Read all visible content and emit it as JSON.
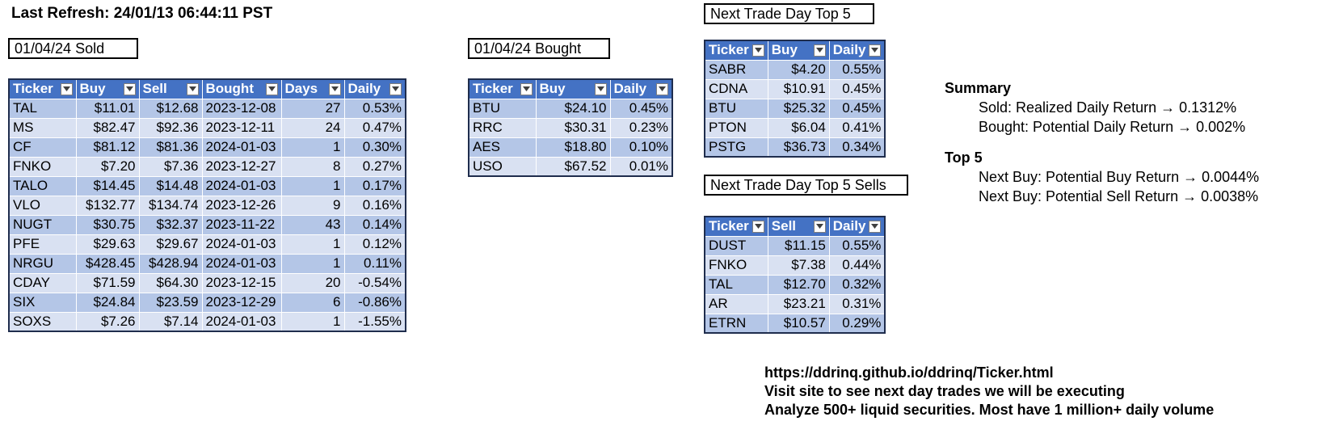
{
  "last_refresh": "Last Refresh: 24/01/13 06:44:11 PST",
  "sold": {
    "label": "01/04/24  Sold",
    "columns": [
      "Ticker",
      "Buy",
      "Sell",
      "Bought",
      "Days",
      "Daily"
    ],
    "rows": [
      [
        "TAL",
        "$11.01",
        "$12.68",
        "2023-12-08",
        "27",
        "0.53%"
      ],
      [
        "MS",
        "$82.47",
        "$92.36",
        "2023-12-11",
        "24",
        "0.47%"
      ],
      [
        "CF",
        "$81.12",
        "$81.36",
        "2024-01-03",
        "1",
        "0.30%"
      ],
      [
        "FNKO",
        "$7.20",
        "$7.36",
        "2023-12-27",
        "8",
        "0.27%"
      ],
      [
        "TALO",
        "$14.45",
        "$14.48",
        "2024-01-03",
        "1",
        "0.17%"
      ],
      [
        "VLO",
        "$132.77",
        "$134.74",
        "2023-12-26",
        "9",
        "0.16%"
      ],
      [
        "NUGT",
        "$30.75",
        "$32.37",
        "2023-11-22",
        "43",
        "0.14%"
      ],
      [
        "PFE",
        "$29.63",
        "$29.67",
        "2024-01-03",
        "1",
        "0.12%"
      ],
      [
        "NRGU",
        "$428.45",
        "$428.94",
        "2024-01-03",
        "1",
        "0.11%"
      ],
      [
        "CDAY",
        "$71.59",
        "$64.30",
        "2023-12-15",
        "20",
        "-0.54%"
      ],
      [
        "SIX",
        "$24.84",
        "$23.59",
        "2023-12-29",
        "6",
        "-0.86%"
      ],
      [
        "SOXS",
        "$7.26",
        "$7.14",
        "2024-01-03",
        "1",
        "-1.55%"
      ]
    ]
  },
  "bought": {
    "label": "01/04/24  Bought",
    "columns": [
      "Ticker",
      "Buy",
      "Daily"
    ],
    "rows": [
      [
        "BTU",
        "$24.10",
        "0.45%"
      ],
      [
        "RRC",
        "$30.31",
        "0.23%"
      ],
      [
        "AES",
        "$18.80",
        "0.10%"
      ],
      [
        "USO",
        "$67.52",
        "0.01%"
      ]
    ]
  },
  "top5": {
    "label": "Next Trade Day Top 5",
    "columns": [
      "Ticker",
      "Buy",
      "Daily"
    ],
    "rows": [
      [
        "SABR",
        "$4.20",
        "0.55%"
      ],
      [
        "CDNA",
        "$10.91",
        "0.45%"
      ],
      [
        "BTU",
        "$25.32",
        "0.45%"
      ],
      [
        "PTON",
        "$6.04",
        "0.41%"
      ],
      [
        "PSTG",
        "$36.73",
        "0.34%"
      ]
    ]
  },
  "top5_sells": {
    "label": "Next Trade Day Top 5 Sells",
    "columns": [
      "Ticker",
      "Sell",
      "Daily"
    ],
    "rows": [
      [
        "DUST",
        "$11.15",
        "0.55%"
      ],
      [
        "FNKO",
        "$7.38",
        "0.44%"
      ],
      [
        "TAL",
        "$12.70",
        "0.32%"
      ],
      [
        "AR",
        "$23.21",
        "0.31%"
      ],
      [
        "ETRN",
        "$10.57",
        "0.29%"
      ]
    ]
  },
  "summary": {
    "heading": "Summary",
    "sold_line": "Sold: Realized Daily Return → 0.1312%",
    "bought_line": "Bought: Potential Daily Return → 0.002%",
    "top5_heading": "Top 5",
    "next_buy_line": "Next Buy: Potential Buy Return → 0.0044%",
    "next_sell_line": "Next Buy: Potential Sell Return → 0.0038%"
  },
  "footer": {
    "url": "https://ddrinq.github.io/ddrinq/Ticker.html",
    "line2": "Visit site to see next day trades we will be executing",
    "line3": "Analyze 500+ liquid securities.  Most have 1 million+ daily volume"
  },
  "colors": {
    "header_bg": "#4472c4",
    "row_dark": "#b4c6e7",
    "row_light": "#d9e1f2"
  },
  "icons": {
    "filter": "filter-dropdown-icon"
  }
}
